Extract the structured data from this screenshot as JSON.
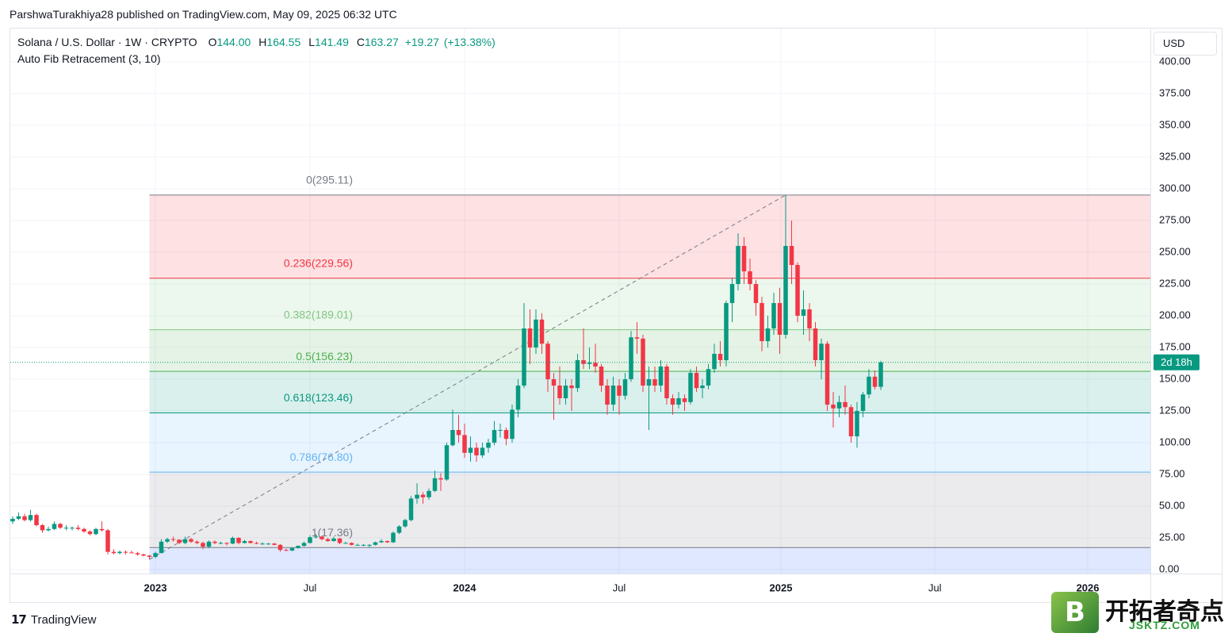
{
  "header": {
    "published": "ParshwaTurakhiya28 published on TradingView.com, May 09, 2025 06:32 UTC"
  },
  "chart_data": {
    "type": "candlestick",
    "title": "Solana / U.S. Dollar · 1W · CRYPTO",
    "ohlc": [
      {
        "key": "O",
        "value": 144,
        "label": "144.00"
      },
      {
        "key": "H",
        "value": 164.55,
        "label": "164.55"
      },
      {
        "key": "L",
        "value": 141.49,
        "label": "141.49"
      },
      {
        "key": "C",
        "value": 163.27,
        "label": "163.27"
      }
    ],
    "change": {
      "value": 19.27,
      "label": "+19.27"
    },
    "change_percent": {
      "value": 13.38,
      "label": "(+13.38%)"
    },
    "indicator": "Auto Fib Retracement (3, 10)",
    "currency": "USD",
    "countdown": "2d 18h",
    "up_color": "#089981",
    "down_color": "#f23645",
    "grid": true,
    "xlim": [
      -0.4,
      191.33
    ],
    "xticks": [
      {
        "value": 24,
        "label": "2023"
      },
      {
        "value": 50,
        "label": "Jul"
      },
      {
        "value": 76,
        "label": "2024"
      },
      {
        "value": 102,
        "label": "Jul"
      },
      {
        "value": 129.2,
        "label": "2025"
      },
      {
        "value": 155.1,
        "label": "Jul"
      },
      {
        "value": 180.8,
        "label": "2026"
      }
    ],
    "ylim": [
      -3.1,
      426.9
    ],
    "yticks": [
      {
        "value": 0,
        "label": "0.00"
      },
      {
        "value": 25,
        "label": "25.00"
      },
      {
        "value": 50,
        "label": "50.00"
      },
      {
        "value": 75,
        "label": "75.00"
      },
      {
        "value": 100,
        "label": "100.00"
      },
      {
        "value": 125,
        "label": "125.00"
      },
      {
        "value": 150,
        "label": "150.00"
      },
      {
        "value": 175,
        "label": "175.00"
      },
      {
        "value": 200,
        "label": "200.00"
      },
      {
        "value": 225,
        "label": "225.00"
      },
      {
        "value": 250,
        "label": "250.00"
      },
      {
        "value": 275,
        "label": "275.00"
      },
      {
        "value": 300,
        "label": "300.00"
      },
      {
        "value": 325,
        "label": "325.00"
      },
      {
        "value": 350,
        "label": "350.00"
      },
      {
        "value": 375,
        "label": "375.00"
      },
      {
        "value": 400,
        "label": "400.00"
      }
    ],
    "candles": [
      [
        38,
        42,
        36,
        40
      ],
      [
        40,
        45,
        39,
        42
      ],
      [
        42,
        44,
        38,
        39
      ],
      [
        39,
        47,
        38,
        43
      ],
      [
        43,
        44,
        34,
        35
      ],
      [
        35,
        36,
        29,
        31
      ],
      [
        31,
        34,
        30,
        32
      ],
      [
        32,
        38,
        31,
        36
      ],
      [
        36,
        37,
        32,
        33
      ],
      [
        33,
        35,
        31,
        33
      ],
      [
        33,
        34,
        31,
        33
      ],
      [
        33,
        35,
        31,
        32
      ],
      [
        32,
        33,
        29,
        30
      ],
      [
        30,
        31,
        27,
        28
      ],
      [
        28,
        33,
        27,
        32
      ],
      [
        32,
        38,
        30,
        31
      ],
      [
        31,
        32,
        12,
        14
      ],
      [
        14,
        16,
        12,
        13
      ],
      [
        13,
        15,
        12,
        14
      ],
      [
        14,
        15,
        12,
        13.5
      ],
      [
        13.5,
        15,
        13,
        13
      ],
      [
        13,
        14,
        11,
        12
      ],
      [
        12,
        12.5,
        10.5,
        11
      ],
      [
        11,
        11.5,
        8,
        10
      ],
      [
        10,
        14,
        9,
        13
      ],
      [
        13,
        24,
        13,
        22
      ],
      [
        22,
        25,
        21,
        24
      ],
      [
        24,
        26,
        22,
        23.5
      ],
      [
        23.5,
        24,
        20,
        21
      ],
      [
        21,
        26,
        20,
        24
      ],
      [
        24,
        25,
        21,
        22
      ],
      [
        22,
        23,
        20,
        21
      ],
      [
        21,
        22,
        16,
        18
      ],
      [
        18,
        23,
        17,
        22
      ],
      [
        22,
        23,
        20,
        21
      ],
      [
        21,
        22,
        20,
        21
      ],
      [
        21,
        21.5,
        19,
        20.5
      ],
      [
        20.5,
        26,
        20,
        25
      ],
      [
        25,
        25.5,
        20,
        21
      ],
      [
        21,
        23.5,
        20.5,
        22.5
      ],
      [
        22.5,
        23,
        20.5,
        21
      ],
      [
        21,
        22,
        20,
        20.5
      ],
      [
        20.5,
        21.5,
        19.5,
        20.5
      ],
      [
        20.5,
        21,
        19.5,
        20.5
      ],
      [
        20.5,
        21,
        19,
        19.5
      ],
      [
        19.5,
        20,
        14,
        15.5
      ],
      [
        15.5,
        16.5,
        14.5,
        15
      ],
      [
        15,
        17.5,
        14.5,
        17
      ],
      [
        17,
        19,
        16.5,
        18.7
      ],
      [
        18.7,
        22,
        18,
        21
      ],
      [
        21,
        27,
        20.5,
        25.5
      ],
      [
        25.5,
        28,
        24.5,
        26
      ],
      [
        26,
        26.5,
        23,
        24
      ],
      [
        24,
        25,
        22,
        22.5
      ],
      [
        22.5,
        26,
        22,
        24.5
      ],
      [
        24.5,
        25,
        20,
        21
      ],
      [
        21,
        22,
        20.5,
        21
      ],
      [
        21,
        21.5,
        19,
        19.5
      ],
      [
        19.5,
        20.5,
        19,
        19.5
      ],
      [
        19.5,
        20,
        18.5,
        19.5
      ],
      [
        19.5,
        20,
        17.36,
        19.5
      ],
      [
        19.5,
        22,
        19,
        21.5
      ],
      [
        21.5,
        24,
        21,
        22.5
      ],
      [
        22.5,
        23,
        21,
        21.5
      ],
      [
        21.5,
        30,
        21,
        29
      ],
      [
        29,
        35,
        28,
        34
      ],
      [
        34,
        40,
        33,
        39
      ],
      [
        39,
        58,
        38,
        56
      ],
      [
        56,
        68,
        52,
        59
      ],
      [
        59,
        61,
        52,
        57
      ],
      [
        57,
        64,
        55,
        62
      ],
      [
        62,
        78,
        61,
        72
      ],
      [
        72,
        76,
        62,
        71
      ],
      [
        71,
        100,
        70,
        98
      ],
      [
        98,
        126,
        97,
        110
      ],
      [
        110,
        122,
        100,
        106
      ],
      [
        106,
        115,
        88,
        92
      ],
      [
        92,
        105,
        85,
        96
      ],
      [
        96,
        100,
        85,
        90
      ],
      [
        90,
        100,
        88,
        96
      ],
      [
        96,
        103,
        92,
        100
      ],
      [
        100,
        117,
        98,
        110
      ],
      [
        110,
        115,
        104,
        110
      ],
      [
        110,
        112,
        98,
        103
      ],
      [
        103,
        130,
        100,
        126
      ],
      [
        126,
        150,
        120,
        145
      ],
      [
        145,
        210,
        143,
        190
      ],
      [
        190,
        205,
        162,
        175
      ],
      [
        175,
        205,
        170,
        197
      ],
      [
        197,
        202,
        170,
        178
      ],
      [
        178,
        180,
        140,
        150
      ],
      [
        150,
        155,
        118,
        145
      ],
      [
        145,
        160,
        130,
        135
      ],
      [
        135,
        150,
        130,
        145
      ],
      [
        145,
        150,
        125,
        143
      ],
      [
        143,
        170,
        140,
        165
      ],
      [
        165,
        190,
        158,
        162
      ],
      [
        162,
        175,
        158,
        163
      ],
      [
        163,
        178,
        155,
        160
      ],
      [
        160,
        162,
        140,
        145
      ],
      [
        145,
        150,
        122,
        130
      ],
      [
        130,
        152,
        125,
        145
      ],
      [
        145,
        150,
        122,
        137
      ],
      [
        137,
        155,
        134,
        150
      ],
      [
        150,
        188,
        148,
        183
      ],
      [
        183,
        195,
        170,
        182
      ],
      [
        182,
        185,
        140,
        145
      ],
      [
        145,
        160,
        110,
        150
      ],
      [
        150,
        160,
        140,
        145
      ],
      [
        145,
        165,
        140,
        160
      ],
      [
        160,
        162,
        130,
        135
      ],
      [
        135,
        138,
        122,
        130
      ],
      [
        130,
        140,
        127,
        135
      ],
      [
        135,
        138,
        125,
        132
      ],
      [
        132,
        158,
        130,
        155
      ],
      [
        155,
        160,
        140,
        143
      ],
      [
        143,
        150,
        135,
        145
      ],
      [
        145,
        162,
        142,
        158
      ],
      [
        158,
        178,
        155,
        170
      ],
      [
        170,
        180,
        160,
        165
      ],
      [
        165,
        212,
        160,
        210
      ],
      [
        210,
        230,
        195,
        225
      ],
      [
        225,
        265,
        220,
        255
      ],
      [
        255,
        262,
        225,
        235
      ],
      [
        235,
        245,
        220,
        225
      ],
      [
        225,
        228,
        200,
        210
      ],
      [
        210,
        215,
        172,
        180
      ],
      [
        180,
        200,
        175,
        190
      ],
      [
        190,
        218,
        185,
        210
      ],
      [
        210,
        222,
        170,
        185
      ],
      [
        185,
        295.11,
        182,
        255
      ],
      [
        255,
        275,
        225,
        240
      ],
      [
        240,
        242,
        195,
        200
      ],
      [
        200,
        220,
        185,
        205
      ],
      [
        205,
        210,
        180,
        190
      ],
      [
        190,
        195,
        160,
        165
      ],
      [
        165,
        182,
        150,
        178
      ],
      [
        178,
        180,
        125,
        130
      ],
      [
        130,
        140,
        112,
        127
      ],
      [
        127,
        137,
        120,
        132
      ],
      [
        132,
        145,
        122,
        128
      ],
      [
        128,
        130,
        100,
        105
      ],
      [
        105,
        132,
        96,
        125
      ],
      [
        125,
        140,
        120,
        138
      ],
      [
        138,
        158,
        135,
        152
      ],
      [
        152,
        157,
        142,
        144
      ],
      [
        144,
        164.55,
        141.49,
        163.27
      ]
    ],
    "fib": {
      "below_color": "#2962ff",
      "levels": [
        {
          "value": 295.11,
          "label": "0(295.11)",
          "color": "#787b86"
        },
        {
          "value": 229.56,
          "label": "0.236(229.56)",
          "color": "#f23645"
        },
        {
          "value": 189.01,
          "label": "0.382(189.01)",
          "color": "#81c784"
        },
        {
          "value": 156.23,
          "label": "0.5(156.23)",
          "color": "#4caf50"
        },
        {
          "value": 123.46,
          "label": "0.618(123.46)",
          "color": "#089981"
        },
        {
          "value": 76.8,
          "label": "0.786(76.80)",
          "color": "#64b5f6"
        },
        {
          "value": 17.36,
          "label": "1(17.36)",
          "color": "#787b86"
        }
      ]
    }
  },
  "footer": {
    "brand": "TradingView"
  },
  "watermark": {
    "letter": "B",
    "name": "开拓者奇点",
    "site": "JSKTZ.COM"
  }
}
